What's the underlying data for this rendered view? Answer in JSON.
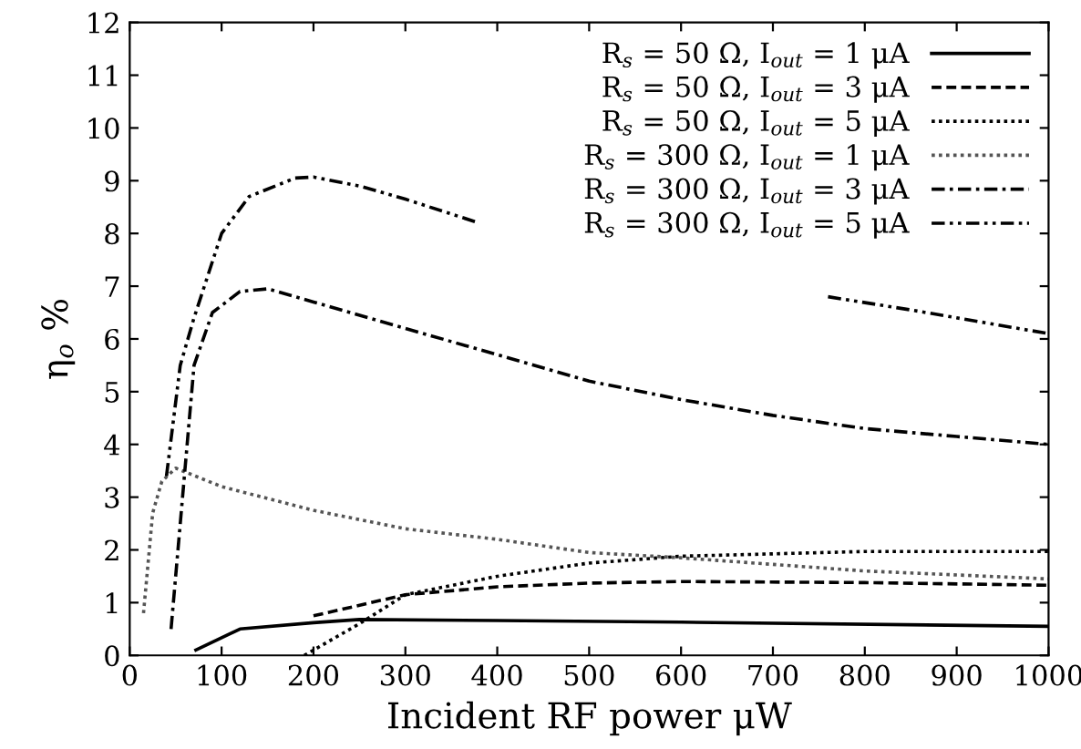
{
  "chart_data": {
    "type": "line",
    "xlabel": "Incident RF power μW",
    "ylabel": "η$_{o}$ %",
    "xlim": [
      0,
      1000
    ],
    "ylim": [
      0,
      12
    ],
    "xticks": [
      0,
      100,
      200,
      300,
      400,
      500,
      600,
      700,
      800,
      900,
      1000
    ],
    "yticks": [
      0,
      1,
      2,
      3,
      4,
      5,
      6,
      7,
      8,
      9,
      10,
      11,
      12
    ],
    "grid": false,
    "legend": "top right",
    "marker": "none",
    "series": [
      {
        "name": "R$_{s}$ = 50 Ω, I$_{out}$ = 1 μA",
        "color": "#000000",
        "line_style": "solid",
        "x": [
          72,
          120,
          200,
          250,
          400,
          600,
          1000
        ],
        "values": [
          0.1,
          0.5,
          0.62,
          0.68,
          0.66,
          0.63,
          0.55
        ]
      },
      {
        "name": "R$_{s}$ = 50 Ω, I$_{out}$ = 3 μA",
        "color": "#000000",
        "line_style": "dashed",
        "x": [
          200,
          300,
          400,
          500,
          600,
          800,
          1000
        ],
        "values": [
          0.75,
          1.15,
          1.3,
          1.37,
          1.4,
          1.38,
          1.33
        ]
      },
      {
        "name": "R$_{s}$ = 50 Ω, I$_{out}$ = 5 μA",
        "color": "#000000",
        "line_style": "dotted",
        "x": [
          190,
          250,
          300,
          400,
          500,
          600,
          800,
          1000
        ],
        "values": [
          0.0,
          0.6,
          1.15,
          1.5,
          1.75,
          1.88,
          1.97,
          1.97
        ]
      },
      {
        "name": "R$_{s}$ = 300 Ω, I$_{out}$ = 1 μA",
        "color": "#555555",
        "line_style": "dotted",
        "x": [
          15,
          25,
          35,
          50,
          100,
          200,
          300,
          400,
          500,
          600,
          800,
          1000
        ],
        "values": [
          0.8,
          2.7,
          3.3,
          3.55,
          3.2,
          2.75,
          2.4,
          2.2,
          1.95,
          1.85,
          1.6,
          1.45
        ]
      },
      {
        "name": "R$_{s}$ = 300 Ω, I$_{out}$ = 3 μA",
        "color": "#000000",
        "line_style": "dashdot",
        "x": [
          45,
          60,
          70,
          90,
          120,
          150,
          200,
          300,
          400,
          500,
          600,
          700,
          800,
          900,
          1000
        ],
        "values": [
          0.5,
          3.5,
          5.5,
          6.5,
          6.9,
          6.95,
          6.7,
          6.2,
          5.7,
          5.2,
          4.85,
          4.55,
          4.3,
          4.15,
          4.0
        ]
      },
      {
        "name": "R$_{s}$ = 300 Ω, I$_{out}$ = 5 μA",
        "color": "#000000",
        "line_style": "dashdotdot",
        "x": [
          40,
          55,
          70,
          100,
          130,
          180,
          200,
          250,
          300,
          380,
          500,
          760,
          850,
          1000
        ],
        "values": [
          3.4,
          5.5,
          6.4,
          8.0,
          8.7,
          9.05,
          9.07,
          8.9,
          8.65,
          8.2,
          null,
          6.8,
          6.55,
          6.1
        ]
      }
    ]
  }
}
